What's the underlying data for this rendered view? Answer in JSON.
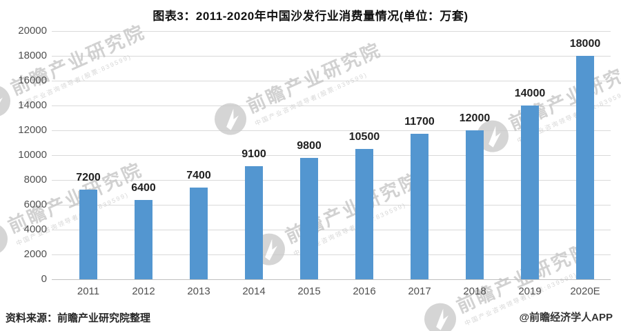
{
  "title": "图表3：2011-2020年中国沙发行业消费量情况(单位：万套)",
  "chart_data": {
    "type": "bar",
    "title": "图表3：2011-2020年中国沙发行业消费量情况(单位：万套)",
    "unit": "万套",
    "categories": [
      "2011",
      "2012",
      "2013",
      "2014",
      "2015",
      "2016",
      "2017",
      "2018",
      "2019",
      "2020E"
    ],
    "values": [
      7200,
      6400,
      7400,
      9100,
      9800,
      10500,
      11700,
      12000,
      14000,
      18000
    ],
    "ylim": [
      0,
      20000
    ],
    "ytick_step": 2000,
    "grid": true,
    "legend": false,
    "bar_color": "#5396D0",
    "gridline_color": "#d9d9d9",
    "axis_line_color": "#bfbfbf",
    "tick_label_color": "#4f4f4f",
    "value_label_color": "#1f1f1f"
  },
  "footer": {
    "source": "资料来源：前瞻产业研究院整理",
    "credit": "@前瞻经济学人APP"
  },
  "watermark": {
    "main": "前瞻产业研究院",
    "sub": "中国产业咨询领导者(股票:839599)"
  }
}
